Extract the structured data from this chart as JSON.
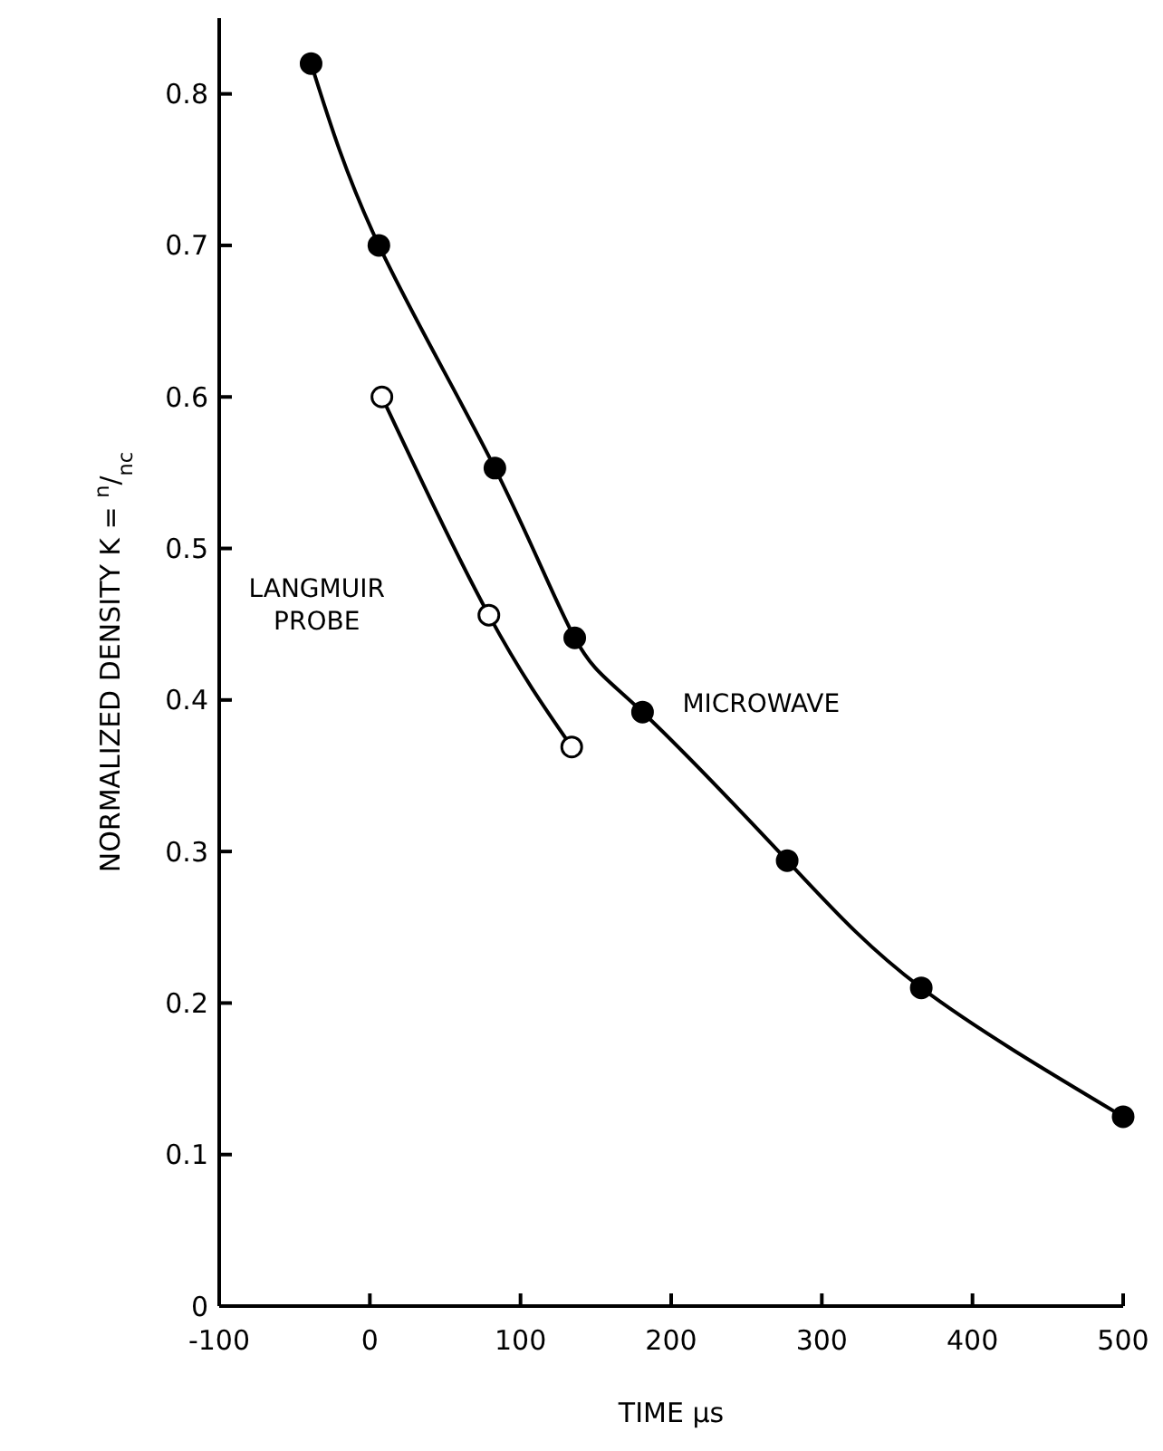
{
  "chart_data": {
    "type": "line",
    "xlabel": "TIME μs",
    "ylabel": "NORMALIZED DENSITY  K = $^{n}$/$_{nc}$",
    "xlim": [
      -100,
      500
    ],
    "xticks": [
      -100,
      0,
      100,
      200,
      300,
      400,
      500
    ],
    "ylim": [
      0,
      0.85
    ],
    "yticks": [
      0,
      0.1,
      0.2,
      0.3,
      0.4,
      0.5,
      0.6,
      0.7,
      0.8
    ],
    "grid": false,
    "marker": "circle",
    "line_style": "solid",
    "series": [
      {
        "name": "MICROWAVE",
        "color": "#000000",
        "x": [
          -39,
          6,
          83,
          136,
          181,
          277,
          366,
          500
        ],
        "values": [
          0.82,
          0.7,
          0.553,
          0.441,
          0.392,
          0.294,
          0.21,
          0.125
        ]
      },
      {
        "name": "LANGMUIR PROBE",
        "color": "#000000",
        "x": [
          8,
          79,
          134
        ],
        "values": [
          0.6,
          0.456,
          0.369
        ]
      }
    ]
  }
}
